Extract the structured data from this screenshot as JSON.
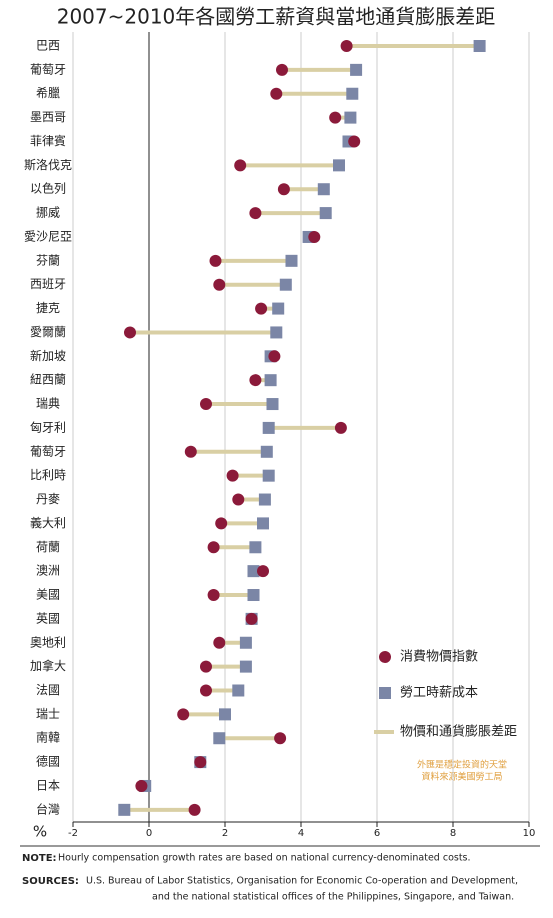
{
  "chart_data": {
    "type": "dumbbell",
    "title": "2007~2010年各國勞工薪資與當地通貨膨脹差距",
    "categories": [
      "巴西",
      "葡萄牙",
      "希臘",
      "墨西哥",
      "菲律賓",
      "斯洛伐克",
      "以色列",
      "挪威",
      "愛沙尼亞",
      "芬蘭",
      "西班牙",
      "捷克",
      "愛爾蘭",
      "新加坡",
      "紐西蘭",
      "瑞典",
      "匈牙利",
      "葡萄牙",
      "比利時",
      "丹麥",
      "義大利",
      "荷蘭",
      "澳洲",
      "美國",
      "英國",
      "奧地利",
      "加拿大",
      "法國",
      "瑞士",
      "南韓",
      "德國",
      "日本",
      "台灣"
    ],
    "series": [
      {
        "name": "消費物價指數",
        "color": "#8b1a3a",
        "marker": "circle",
        "values": [
          5.2,
          3.5,
          3.35,
          4.9,
          5.4,
          2.4,
          3.55,
          2.8,
          4.35,
          1.75,
          1.85,
          2.95,
          -0.5,
          3.3,
          2.8,
          1.5,
          5.05,
          1.1,
          2.2,
          2.35,
          1.9,
          1.7,
          3.0,
          1.7,
          2.7,
          1.85,
          1.5,
          1.5,
          0.9,
          3.45,
          1.35,
          -0.2,
          1.2
        ]
      },
      {
        "name": "勞工時薪成本",
        "color": "#7b86a6",
        "marker": "square",
        "values": [
          8.7,
          5.45,
          5.35,
          5.3,
          5.25,
          5.0,
          4.6,
          4.65,
          4.2,
          3.75,
          3.6,
          3.4,
          3.35,
          3.2,
          3.2,
          3.25,
          3.15,
          3.1,
          3.15,
          3.05,
          3.0,
          2.8,
          2.75,
          2.75,
          2.7,
          2.55,
          2.55,
          2.35,
          2.0,
          1.85,
          1.35,
          -0.1,
          -0.65
        ]
      }
    ],
    "connector": {
      "name": "物價和通貨膨脹差距",
      "color": "#d9cfa4"
    },
    "xlim": [
      -2,
      10
    ],
    "xticks": [
      -2,
      0,
      2,
      4,
      6,
      8,
      10
    ],
    "xlabel": "%",
    "grid": true,
    "annotation": [
      "外匯是穩定投資的天堂",
      "資料來源美國勞工局"
    ],
    "note_label": "NOTE:",
    "note": "Hourly compensation growth rates are based on national currency-denominated costs.",
    "sources_label": "SOURCES:",
    "sources": [
      "U.S. Bureau of Labor Statistics, Organisation for Economic Co-operation and Development,",
      "and the national statistical offices of the Philippines, Singapore, and Taiwan."
    ]
  }
}
